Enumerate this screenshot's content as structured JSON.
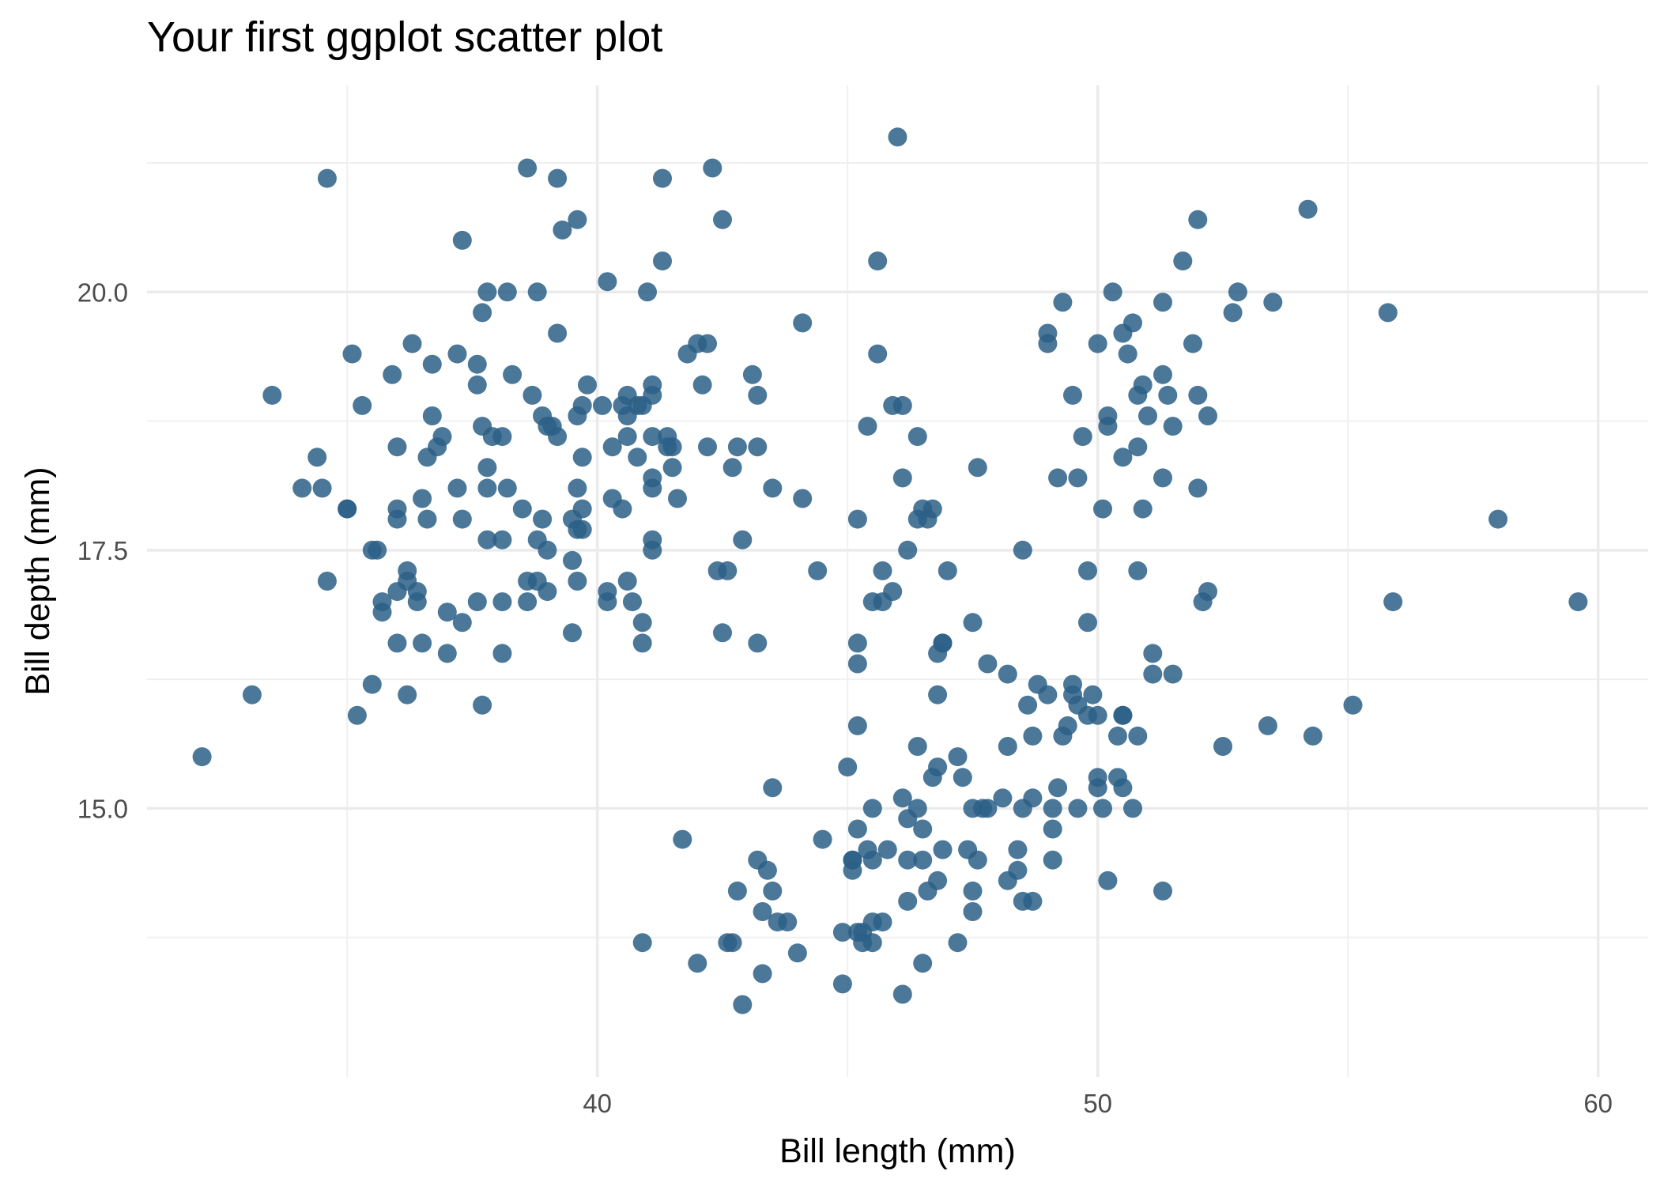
{
  "chart_data": {
    "type": "scatter",
    "title": "Your first ggplot scatter plot",
    "xlabel": "Bill length (mm)",
    "ylabel": "Bill depth (mm)",
    "xlim": [
      31.0,
      61.0
    ],
    "ylim": [
      12.4,
      22.0
    ],
    "x_ticks": [
      40,
      50,
      60
    ],
    "x_tick_labels": [
      "40",
      "50",
      "60"
    ],
    "x_minor_ticks": [
      35,
      45,
      55
    ],
    "y_ticks": [
      15.0,
      17.5,
      20.0
    ],
    "y_tick_labels": [
      "15.0",
      "17.5",
      "20.0"
    ],
    "y_minor_ticks": [
      13.75,
      16.25,
      18.75,
      21.25
    ],
    "grid": true,
    "point_color": "#2c5f86",
    "points": [
      [
        32.1,
        15.5
      ],
      [
        33.1,
        16.1
      ],
      [
        33.5,
        19.0
      ],
      [
        34.1,
        18.1
      ],
      [
        34.4,
        18.4
      ],
      [
        34.5,
        18.1
      ],
      [
        34.6,
        21.1
      ],
      [
        34.6,
        17.2
      ],
      [
        35.0,
        17.9
      ],
      [
        35.0,
        17.9
      ],
      [
        35.1,
        19.4
      ],
      [
        35.2,
        15.9
      ],
      [
        35.3,
        18.9
      ],
      [
        35.5,
        17.5
      ],
      [
        35.5,
        16.2
      ],
      [
        35.6,
        17.5
      ],
      [
        35.7,
        17.0
      ],
      [
        35.7,
        16.9
      ],
      [
        35.9,
        19.2
      ],
      [
        36.0,
        18.5
      ],
      [
        36.0,
        17.9
      ],
      [
        36.0,
        17.8
      ],
      [
        36.0,
        17.1
      ],
      [
        36.0,
        16.6
      ],
      [
        36.2,
        17.3
      ],
      [
        36.2,
        17.2
      ],
      [
        36.2,
        16.1
      ],
      [
        36.3,
        19.5
      ],
      [
        36.4,
        17.1
      ],
      [
        36.4,
        17.0
      ],
      [
        36.5,
        18.0
      ],
      [
        36.5,
        16.6
      ],
      [
        36.6,
        18.4
      ],
      [
        36.6,
        17.8
      ],
      [
        36.7,
        19.3
      ],
      [
        36.7,
        18.8
      ],
      [
        36.8,
        18.5
      ],
      [
        36.9,
        18.6
      ],
      [
        37.0,
        16.9
      ],
      [
        37.0,
        16.5
      ],
      [
        37.2,
        19.4
      ],
      [
        37.2,
        18.1
      ],
      [
        37.3,
        20.5
      ],
      [
        37.3,
        17.8
      ],
      [
        37.3,
        16.8
      ],
      [
        37.6,
        19.3
      ],
      [
        37.6,
        19.1
      ],
      [
        37.6,
        17.0
      ],
      [
        37.7,
        19.8
      ],
      [
        37.7,
        18.7
      ],
      [
        37.7,
        16.0
      ],
      [
        37.8,
        20.0
      ],
      [
        37.8,
        18.3
      ],
      [
        37.8,
        18.1
      ],
      [
        37.9,
        18.6
      ],
      [
        38.1,
        18.6
      ],
      [
        38.1,
        17.6
      ],
      [
        38.1,
        17.0
      ],
      [
        38.1,
        16.5
      ],
      [
        38.2,
        20.0
      ],
      [
        38.2,
        18.1
      ],
      [
        38.3,
        19.2
      ],
      [
        38.5,
        17.9
      ],
      [
        38.6,
        21.2
      ],
      [
        38.6,
        17.2
      ],
      [
        38.6,
        17.0
      ],
      [
        38.7,
        19.0
      ],
      [
        38.8,
        20.0
      ],
      [
        38.8,
        17.6
      ],
      [
        38.8,
        17.2
      ],
      [
        38.9,
        18.8
      ],
      [
        38.9,
        17.8
      ],
      [
        39.0,
        18.7
      ],
      [
        39.0,
        17.5
      ],
      [
        39.0,
        17.1
      ],
      [
        39.1,
        18.7
      ],
      [
        39.2,
        21.1
      ],
      [
        39.2,
        19.6
      ],
      [
        39.2,
        18.6
      ],
      [
        39.3,
        20.6
      ],
      [
        39.5,
        17.8
      ],
      [
        39.5,
        17.4
      ],
      [
        39.5,
        16.7
      ],
      [
        39.6,
        20.7
      ],
      [
        39.6,
        18.8
      ],
      [
        39.6,
        18.1
      ],
      [
        39.6,
        17.7
      ],
      [
        39.6,
        17.2
      ],
      [
        39.7,
        18.9
      ],
      [
        39.7,
        18.4
      ],
      [
        39.7,
        17.9
      ],
      [
        39.7,
        17.7
      ],
      [
        39.8,
        19.1
      ],
      [
        40.1,
        18.9
      ],
      [
        40.2,
        20.1
      ],
      [
        40.2,
        17.1
      ],
      [
        40.2,
        17.0
      ],
      [
        40.3,
        18.5
      ],
      [
        40.3,
        18.0
      ],
      [
        40.5,
        18.9
      ],
      [
        40.5,
        17.9
      ],
      [
        40.6,
        19.0
      ],
      [
        40.6,
        18.8
      ],
      [
        40.6,
        18.6
      ],
      [
        40.6,
        17.2
      ],
      [
        40.7,
        17.0
      ],
      [
        40.8,
        18.9
      ],
      [
        40.8,
        18.4
      ],
      [
        40.9,
        18.9
      ],
      [
        40.9,
        16.8
      ],
      [
        40.9,
        16.6
      ],
      [
        41.0,
        20.0
      ],
      [
        41.1,
        19.1
      ],
      [
        41.1,
        19.0
      ],
      [
        41.1,
        18.6
      ],
      [
        41.1,
        18.2
      ],
      [
        41.1,
        18.1
      ],
      [
        41.1,
        17.6
      ],
      [
        41.1,
        17.5
      ],
      [
        41.3,
        21.1
      ],
      [
        41.3,
        20.3
      ],
      [
        41.4,
        18.6
      ],
      [
        41.4,
        18.5
      ],
      [
        41.5,
        18.5
      ],
      [
        41.5,
        18.3
      ],
      [
        41.6,
        18.0
      ],
      [
        42.0,
        19.5
      ],
      [
        42.2,
        19.5
      ],
      [
        42.2,
        18.5
      ],
      [
        42.3,
        21.2
      ],
      [
        42.4,
        17.3
      ],
      [
        42.5,
        20.7
      ],
      [
        42.5,
        16.7
      ],
      [
        42.6,
        17.3
      ],
      [
        42.7,
        18.3
      ],
      [
        42.8,
        18.5
      ],
      [
        42.9,
        17.6
      ],
      [
        43.1,
        19.2
      ],
      [
        43.2,
        19.0
      ],
      [
        43.2,
        18.5
      ],
      [
        43.2,
        16.6
      ],
      [
        43.5,
        18.1
      ],
      [
        44.1,
        19.7
      ],
      [
        44.1,
        18.0
      ],
      [
        44.4,
        17.3
      ],
      [
        41.8,
        19.4
      ],
      [
        42.1,
        19.1
      ],
      [
        37.8,
        17.6
      ],
      [
        40.9,
        13.7
      ],
      [
        41.7,
        14.7
      ],
      [
        42.0,
        13.5
      ],
      [
        42.6,
        13.7
      ],
      [
        42.7,
        13.7
      ],
      [
        42.8,
        14.2
      ],
      [
        42.9,
        13.1
      ],
      [
        43.2,
        14.5
      ],
      [
        43.3,
        14.0
      ],
      [
        43.3,
        13.4
      ],
      [
        43.4,
        14.4
      ],
      [
        43.5,
        14.2
      ],
      [
        43.5,
        15.2
      ],
      [
        43.6,
        13.9
      ],
      [
        43.8,
        13.9
      ],
      [
        44.0,
        13.6
      ],
      [
        44.5,
        14.7
      ],
      [
        44.9,
        13.3
      ],
      [
        44.9,
        13.8
      ],
      [
        45.0,
        15.4
      ],
      [
        45.1,
        14.5
      ],
      [
        45.1,
        14.5
      ],
      [
        45.1,
        14.4
      ],
      [
        45.2,
        14.8
      ],
      [
        45.2,
        13.8
      ],
      [
        45.2,
        15.8
      ],
      [
        45.2,
        16.4
      ],
      [
        45.2,
        16.6
      ],
      [
        45.3,
        13.8
      ],
      [
        45.3,
        13.7
      ],
      [
        45.4,
        14.6
      ],
      [
        45.5,
        15.0
      ],
      [
        45.5,
        13.7
      ],
      [
        45.5,
        13.9
      ],
      [
        45.5,
        14.5
      ],
      [
        45.7,
        13.9
      ],
      [
        45.8,
        14.6
      ],
      [
        46.1,
        13.2
      ],
      [
        46.1,
        15.1
      ],
      [
        46.2,
        14.5
      ],
      [
        46.2,
        14.9
      ],
      [
        46.2,
        14.1
      ],
      [
        46.4,
        15.6
      ],
      [
        46.4,
        15.0
      ],
      [
        46.5,
        14.5
      ],
      [
        46.5,
        14.8
      ],
      [
        46.5,
        13.5
      ],
      [
        46.6,
        14.2
      ],
      [
        46.7,
        15.3
      ],
      [
        46.8,
        14.3
      ],
      [
        46.8,
        15.4
      ],
      [
        46.8,
        16.1
      ],
      [
        46.8,
        16.5
      ],
      [
        46.9,
        14.6
      ],
      [
        46.9,
        16.6
      ],
      [
        47.2,
        15.5
      ],
      [
        47.2,
        13.7
      ],
      [
        47.3,
        15.3
      ],
      [
        47.4,
        14.6
      ],
      [
        47.5,
        14.0
      ],
      [
        47.5,
        15.0
      ],
      [
        47.5,
        14.2
      ],
      [
        47.6,
        14.5
      ],
      [
        47.7,
        15.0
      ],
      [
        47.8,
        15.0
      ],
      [
        48.1,
        15.1
      ],
      [
        48.2,
        14.3
      ],
      [
        48.2,
        15.6
      ],
      [
        48.4,
        14.4
      ],
      [
        48.4,
        14.6
      ],
      [
        48.5,
        14.1
      ],
      [
        48.5,
        15.0
      ],
      [
        48.6,
        16.0
      ],
      [
        48.7,
        14.1
      ],
      [
        48.7,
        15.1
      ],
      [
        48.7,
        15.7
      ],
      [
        48.8,
        16.2
      ],
      [
        49.0,
        16.1
      ],
      [
        49.1,
        14.5
      ],
      [
        49.1,
        14.8
      ],
      [
        49.1,
        15.0
      ],
      [
        49.2,
        15.2
      ],
      [
        49.3,
        15.7
      ],
      [
        49.4,
        15.8
      ],
      [
        49.5,
        16.1
      ],
      [
        49.5,
        16.2
      ],
      [
        49.6,
        15.0
      ],
      [
        49.6,
        16.0
      ],
      [
        49.8,
        15.9
      ],
      [
        49.9,
        16.1
      ],
      [
        50.0,
        15.2
      ],
      [
        50.0,
        15.3
      ],
      [
        50.0,
        15.9
      ],
      [
        50.1,
        15.0
      ],
      [
        50.2,
        14.3
      ],
      [
        50.4,
        15.3
      ],
      [
        50.4,
        15.7
      ],
      [
        50.5,
        15.2
      ],
      [
        50.5,
        15.9
      ],
      [
        50.5,
        15.9
      ],
      [
        50.7,
        15.0
      ],
      [
        50.8,
        15.7
      ],
      [
        51.1,
        16.3
      ],
      [
        51.1,
        16.5
      ],
      [
        51.3,
        14.2
      ],
      [
        51.5,
        16.3
      ],
      [
        52.5,
        15.6
      ],
      [
        53.4,
        15.8
      ],
      [
        54.3,
        15.7
      ],
      [
        55.1,
        16.0
      ],
      [
        47.8,
        16.4
      ],
      [
        48.2,
        16.3
      ],
      [
        45.4,
        18.7
      ],
      [
        45.5,
        17.0
      ],
      [
        45.6,
        20.3
      ],
      [
        45.6,
        19.4
      ],
      [
        45.7,
        17.3
      ],
      [
        45.7,
        17.0
      ],
      [
        45.9,
        18.9
      ],
      [
        46.0,
        21.5
      ],
      [
        46.1,
        18.9
      ],
      [
        46.1,
        18.2
      ],
      [
        46.2,
        17.5
      ],
      [
        46.4,
        18.6
      ],
      [
        46.5,
        17.9
      ],
      [
        46.6,
        17.8
      ],
      [
        46.7,
        17.9
      ],
      [
        46.9,
        16.6
      ],
      [
        47.0,
        17.3
      ],
      [
        47.5,
        16.8
      ],
      [
        47.6,
        18.3
      ],
      [
        45.2,
        17.8
      ],
      [
        45.9,
        17.1
      ],
      [
        48.5,
        17.5
      ],
      [
        49.0,
        19.5
      ],
      [
        49.0,
        19.6
      ],
      [
        49.2,
        18.2
      ],
      [
        49.3,
        19.9
      ],
      [
        49.5,
        19.0
      ],
      [
        49.6,
        18.2
      ],
      [
        49.7,
        18.6
      ],
      [
        49.8,
        17.3
      ],
      [
        49.8,
        16.8
      ],
      [
        50.0,
        19.5
      ],
      [
        50.1,
        17.9
      ],
      [
        50.2,
        18.8
      ],
      [
        50.2,
        18.7
      ],
      [
        50.3,
        20.0
      ],
      [
        50.5,
        19.6
      ],
      [
        50.5,
        18.4
      ],
      [
        50.6,
        19.4
      ],
      [
        50.7,
        19.7
      ],
      [
        50.8,
        19.0
      ],
      [
        50.8,
        18.5
      ],
      [
        50.8,
        17.3
      ],
      [
        50.9,
        19.1
      ],
      [
        50.9,
        17.9
      ],
      [
        51.0,
        18.8
      ],
      [
        51.3,
        19.9
      ],
      [
        51.3,
        19.2
      ],
      [
        51.3,
        18.2
      ],
      [
        51.4,
        19.0
      ],
      [
        51.5,
        18.7
      ],
      [
        51.7,
        20.3
      ],
      [
        51.9,
        19.5
      ],
      [
        52.0,
        20.7
      ],
      [
        52.0,
        19.0
      ],
      [
        52.0,
        18.1
      ],
      [
        52.1,
        17.0
      ],
      [
        52.2,
        18.8
      ],
      [
        52.2,
        17.1
      ],
      [
        52.7,
        19.8
      ],
      [
        52.8,
        20.0
      ],
      [
        53.5,
        19.9
      ],
      [
        54.2,
        20.8
      ],
      [
        55.8,
        19.8
      ],
      [
        55.9,
        17.0
      ],
      [
        58.0,
        17.8
      ],
      [
        59.6,
        17.0
      ],
      [
        46.4,
        17.8
      ]
    ]
  }
}
